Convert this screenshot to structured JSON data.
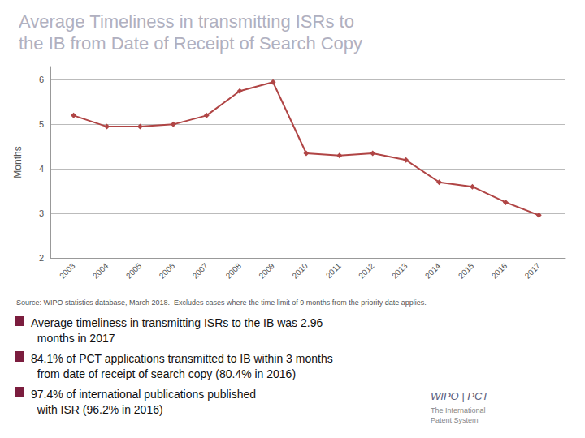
{
  "chart_data": {
    "type": "line",
    "title": "Average Timeliness in transmitting ISRs to\nthe IB from Date of Receipt of Search Copy",
    "y_label": "Months",
    "x": [
      2003,
      2004,
      2005,
      2006,
      2007,
      2008,
      2009,
      2010,
      2011,
      2012,
      2013,
      2014,
      2015,
      2016,
      2017
    ],
    "values": [
      5.2,
      4.95,
      4.95,
      5.0,
      5.2,
      5.75,
      5.95,
      4.35,
      4.3,
      4.35,
      4.2,
      3.7,
      3.6,
      3.25,
      2.96
    ],
    "color": "#b04545",
    "marker": "diamond",
    "xlim": [
      2002.3,
      2017.8
    ],
    "xticks": [
      2003,
      2004,
      2005,
      2006,
      2007,
      2008,
      2009,
      2010,
      2011,
      2012,
      2013,
      2014,
      2015,
      2016,
      2017
    ],
    "ylim": [
      2.0,
      6.3
    ],
    "yticks": [
      2,
      3,
      4,
      5,
      6
    ],
    "grid": true,
    "annotations": [
      "Source: WIPO statistics database, March 2018.  Excludes cases where the time limit of 9 months from the priority date applies.",
      "Average timeliness in transmitting ISRs to the IB was 2.96\n  months in 2017",
      "84.1% of PCT applications transmitted to IB within 3 months\n  from date of receipt of search copy (80.4% in 2016)",
      "97.4% of international publications published\n  with ISR (96.2% in 2016)",
      "WIPO | PCT",
      "The International\nPatent System"
    ]
  }
}
